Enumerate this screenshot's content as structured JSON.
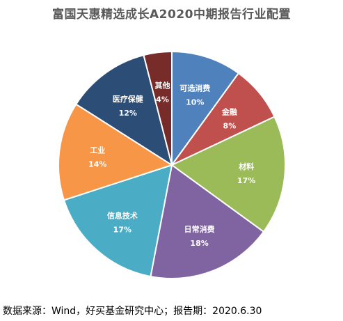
{
  "title": "富国天惠精选成长A2020中期报告行业配置",
  "source": "数据来源：Wind，好买基金研究中心；报告期：2020.6.30",
  "chart_data": {
    "type": "pie",
    "title": "富国天惠精选成长A2020中期报告行业配置",
    "slices": [
      {
        "label": "可选消费",
        "value": 10,
        "display": "10%",
        "color": "#4F81BD"
      },
      {
        "label": "金融",
        "value": 8,
        "display": "8%",
        "color": "#C0504D"
      },
      {
        "label": "材料",
        "value": 17,
        "display": "17%",
        "color": "#9BBB59"
      },
      {
        "label": "日常消费",
        "value": 18,
        "display": "18%",
        "color": "#8064A2"
      },
      {
        "label": "信息技术",
        "value": 17,
        "display": "17%",
        "color": "#4BACC6"
      },
      {
        "label": "工业",
        "value": 14,
        "display": "14%",
        "color": "#F79646"
      },
      {
        "label": "医疗保健",
        "value": 12,
        "display": "12%",
        "color": "#2C4D75"
      },
      {
        "label": "其他",
        "value": 4,
        "display": "4%",
        "color": "#772C2A"
      }
    ],
    "legend": "none"
  }
}
